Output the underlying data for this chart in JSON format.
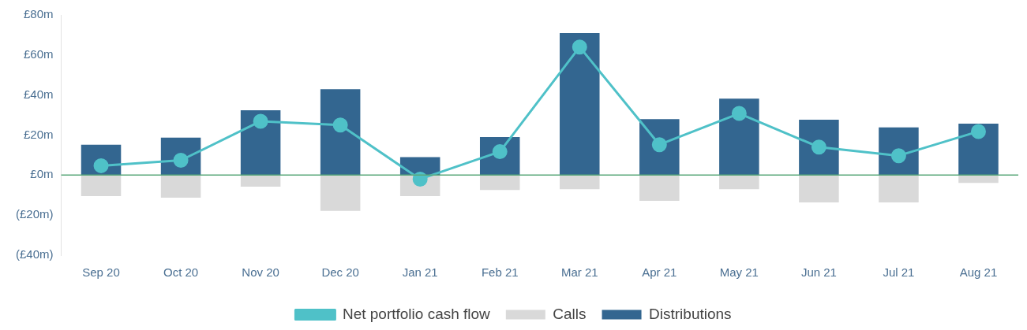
{
  "chart_data": {
    "type": "bar",
    "stacked": true,
    "categories": [
      "Sep 20",
      "Oct 20",
      "Nov 20",
      "Dec 20",
      "Jan 21",
      "Feb 21",
      "Mar 21",
      "Apr 21",
      "May 21",
      "Jun 21",
      "Jul 21",
      "Aug 21"
    ],
    "series": [
      {
        "name": "Calls",
        "color": "#d9d9d9",
        "values": [
          -10.5,
          -11.3,
          -5.8,
          -17.9,
          -10.5,
          -7.4,
          -7,
          -12.9,
          -7,
          -13.6,
          -13.6,
          -3.9
        ]
      },
      {
        "name": "Distributions",
        "color": "#336690",
        "values": [
          15.2,
          18.7,
          32.4,
          42.9,
          9,
          19,
          71,
          28,
          38.2,
          27.7,
          23.8,
          25.7
        ]
      },
      {
        "name": "Net portfolio cash flow",
        "type": "line",
        "color": "#4fc1c8",
        "marker": "circle",
        "values": [
          4.7,
          7.4,
          26.9,
          25,
          -2,
          11.7,
          64,
          15.2,
          30.8,
          14,
          9.7,
          21.8
        ]
      }
    ],
    "ylim": [
      -40,
      80
    ],
    "yticks": [
      {
        "value": -40,
        "label": "(£40m)"
      },
      {
        "value": -20,
        "label": "(£20m)"
      },
      {
        "value": 0,
        "label": "£0m"
      },
      {
        "value": 20,
        "label": "£20m"
      },
      {
        "value": 40,
        "label": "£40m"
      },
      {
        "value": 60,
        "label": "£60m"
      },
      {
        "value": 80,
        "label": "£80m"
      }
    ],
    "ref_lines": [
      {
        "axis": "y",
        "value": 0,
        "color": "#5aa87a"
      }
    ],
    "grid": false,
    "legend": "bottom"
  }
}
